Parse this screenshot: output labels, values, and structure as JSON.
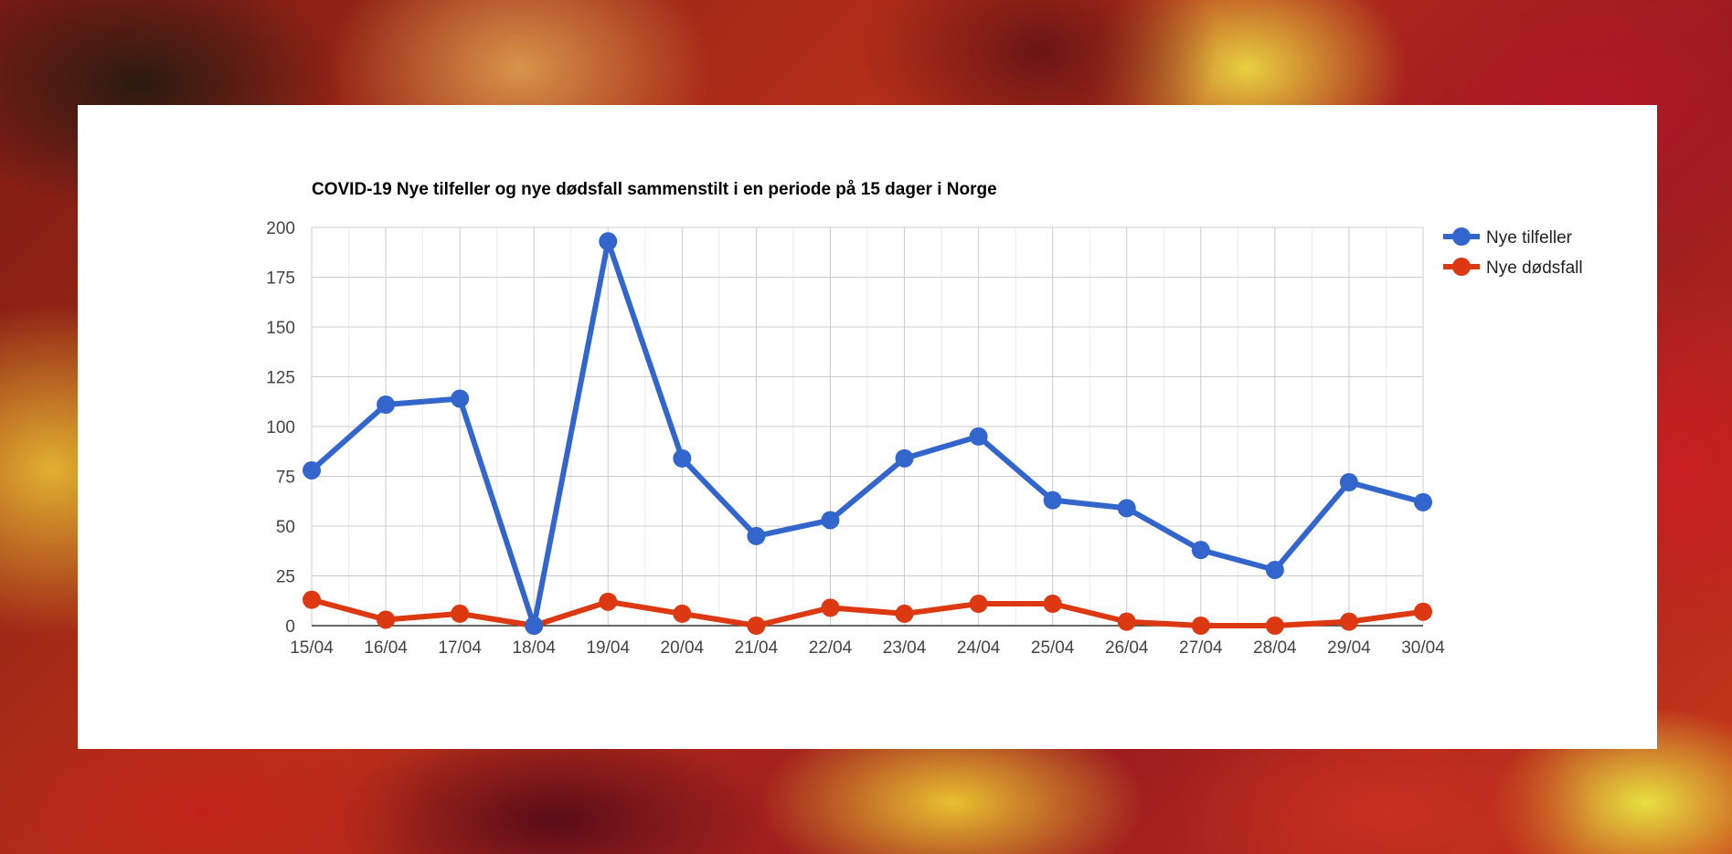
{
  "chart_data": {
    "type": "line",
    "title": "COVID-19 Nye tilfeller og nye dødsfall sammenstilt i en periode på 15 dager i Norge",
    "categories": [
      "15/04",
      "16/04",
      "17/04",
      "18/04",
      "19/04",
      "20/04",
      "21/04",
      "22/04",
      "23/04",
      "24/04",
      "25/04",
      "26/04",
      "27/04",
      "28/04",
      "29/04",
      "30/04"
    ],
    "y_ticks": [
      "0",
      "25",
      "50",
      "75",
      "100",
      "125",
      "150",
      "175",
      "200"
    ],
    "ylim": [
      0,
      200
    ],
    "grid": true,
    "legend_position": "right",
    "series": [
      {
        "name": "Nye tilfeller",
        "color": "#3366cc",
        "values": [
          78,
          111,
          114,
          0,
          193,
          84,
          45,
          53,
          84,
          95,
          63,
          59,
          38,
          28,
          72,
          62
        ]
      },
      {
        "name": "Nye dødsfall",
        "color": "#dc3912",
        "values": [
          13,
          3,
          6,
          0,
          12,
          6,
          0,
          9,
          6,
          11,
          11,
          2,
          0,
          0,
          2,
          7
        ]
      }
    ]
  }
}
